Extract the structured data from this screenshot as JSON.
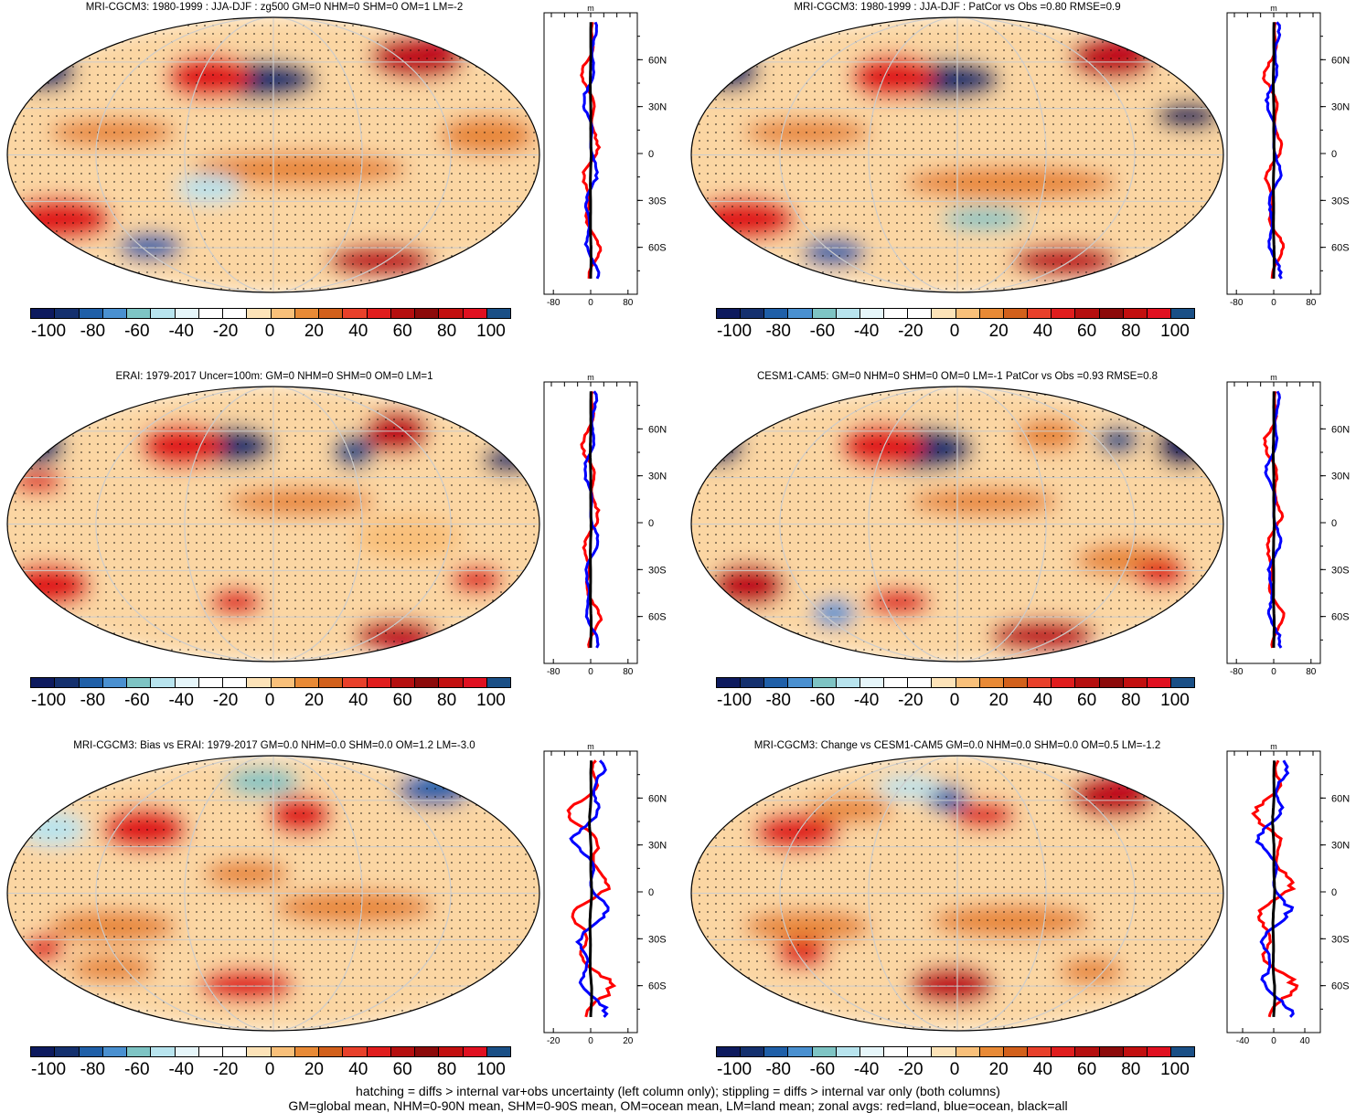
{
  "panels": [
    {
      "title": "MRI-CGCM3: 1980-1999 : JJA-DJF : zg500 GM=0 NHM=0 SHM=0 OM=1 LM=-2",
      "zonal_ticks": [
        "-80",
        "0",
        "80"
      ],
      "zonal_range": [
        -100,
        100
      ]
    },
    {
      "title": "MRI-CGCM3: 1980-1999 : JJA-DJF : PatCor vs Obs =0.80 RMSE=0.9",
      "zonal_ticks": [
        "-80",
        "0",
        "80"
      ],
      "zonal_range": [
        -100,
        100
      ]
    },
    {
      "title": "ERAI: 1979-2017 Uncer=100m: GM=0 NHM=0 SHM=0 OM=0 LM=1",
      "zonal_ticks": [
        "-80",
        "0",
        "80"
      ],
      "zonal_range": [
        -100,
        100
      ]
    },
    {
      "title": "CESM1-CAM5: GM=0 NHM=0 SHM=0 OM=0 LM=-1 PatCor vs Obs =0.93 RMSE=0.8",
      "zonal_ticks": [
        "-80",
        "0",
        "80"
      ],
      "zonal_range": [
        -100,
        100
      ]
    },
    {
      "title": "MRI-CGCM3: Bias vs ERAI: 1979-2017 GM=0.0 NHM=0.0 SHM=0.0 OM=1.2 LM=-3.0",
      "zonal_ticks": [
        "-20",
        "0",
        "20"
      ],
      "zonal_range": [
        -25,
        25
      ]
    },
    {
      "title": "MRI-CGCM3: Change vs CESM1-CAM5 GM=0.0 NHM=0.0 SHM=0.0 OM=0.5 LM=-1.2",
      "zonal_ticks": [
        "-40",
        "0",
        "40"
      ],
      "zonal_range": [
        -60,
        60
      ]
    }
  ],
  "zonal_unit": "m",
  "lat_labels": [
    "60N",
    "30N",
    "0",
    "30S",
    "60S"
  ],
  "colorbar": {
    "labels": [
      "-100",
      "-80",
      "-60",
      "-40",
      "-20",
      "0",
      "20",
      "40",
      "60",
      "80",
      "100"
    ],
    "colors": [
      "#0d1a5e",
      "#14306e",
      "#1f5fa8",
      "#4a90d0",
      "#7ec4c4",
      "#b8e4ee",
      "#e6f6fa",
      "#ffffff",
      "#ffffff",
      "#fde3b8",
      "#f9c07a",
      "#e88a36",
      "#d2601b",
      "#e8402a",
      "#e01d1d",
      "#b50f0f",
      "#8c0a0a",
      "#c20f0f",
      "#e01020",
      "#1a4f86"
    ]
  },
  "footer": {
    "line1": "hatching = diffs > internal var+obs uncertainty (left column only); stippling = diffs > internal var only (both columns)",
    "line2": "GM=global mean, NHM=0-90N mean, SHM=0-90S mean, OM=ocean mean, LM=land mean; zonal avgs: red=land, blue=ocean, black=all"
  },
  "colors": {
    "land": "#ff0000",
    "ocean": "#0000ff",
    "all": "#000000"
  }
}
